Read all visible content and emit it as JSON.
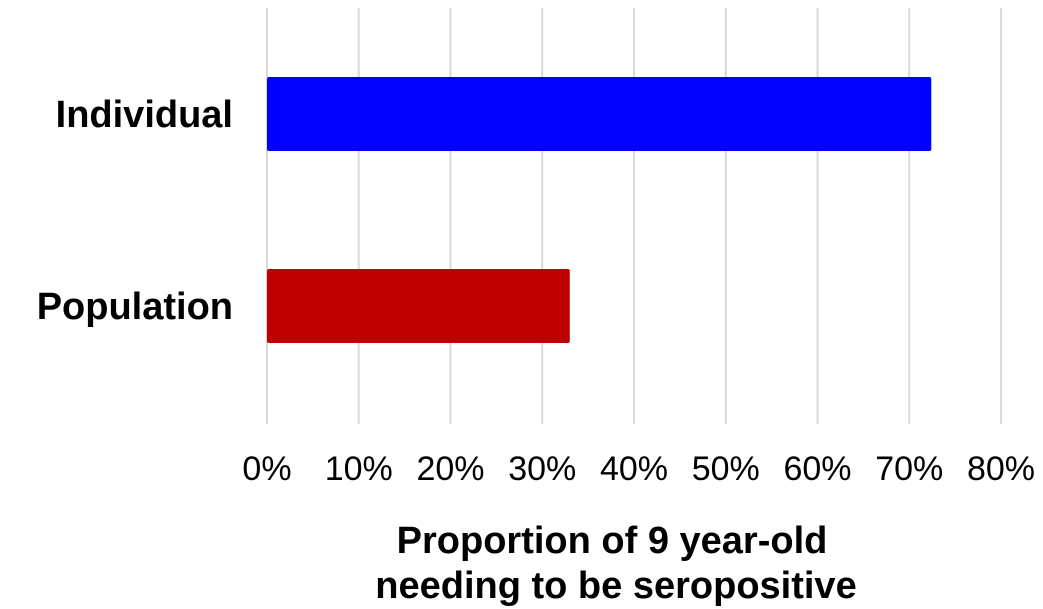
{
  "chart_data": {
    "type": "bar",
    "orientation": "horizontal",
    "categories": [
      "Individual",
      "Population"
    ],
    "values": [
      0.724,
      0.33
    ],
    "colors": [
      "#0000ff",
      "#c00000"
    ],
    "xlim": [
      0,
      0.8
    ],
    "xticks": [
      0,
      0.1,
      0.2,
      0.3,
      0.4,
      0.5,
      0.6,
      0.7,
      0.8
    ],
    "xtick_labels": [
      "0%",
      "10%",
      "20%",
      "30%",
      "40%",
      "50%",
      "60%",
      "70%",
      "80%"
    ],
    "xlabel_lines": [
      "Proportion of 9 year-old",
      "needing to be seropositive"
    ],
    "grid": "vertical",
    "legend": "none"
  }
}
